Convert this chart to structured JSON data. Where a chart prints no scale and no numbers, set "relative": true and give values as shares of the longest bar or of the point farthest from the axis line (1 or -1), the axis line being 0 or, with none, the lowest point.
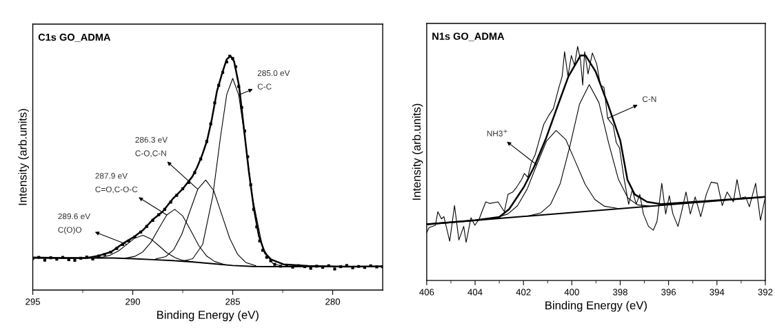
{
  "chart_data": [
    {
      "type": "line",
      "title": "C1s GO_ADMA",
      "xlabel": "Binding Energy (eV)",
      "ylabel": "Intensity (arb.units)",
      "relative": true,
      "tick_labels": "x",
      "xlim": [
        295,
        277.5
      ],
      "xticks": [
        295,
        {
          "value": 292.5,
          "label": null
        },
        290,
        {
          "value": 287.5,
          "label": null
        },
        285,
        {
          "value": 282.5,
          "label": null
        },
        280
      ],
      "series": [
        {
          "type": "scatter",
          "marker": "square",
          "color": "#000000",
          "x": [
            295.0,
            294.7,
            294.4,
            294.1,
            293.8,
            293.5,
            293.2,
            292.9,
            292.6,
            292.3,
            292.0,
            291.7,
            291.4,
            291.1,
            290.8,
            290.5,
            290.2,
            289.9,
            289.6,
            289.3,
            289.0,
            288.7,
            288.4,
            288.1,
            287.8,
            287.5,
            287.2,
            286.9,
            286.6,
            286.3,
            286.1,
            285.9,
            285.7,
            285.5,
            285.3,
            285.15,
            285.0,
            284.85,
            284.7,
            284.55,
            284.4,
            284.25,
            284.1,
            283.95,
            283.8,
            283.65,
            283.5,
            283.3,
            283.1,
            282.9,
            282.6,
            282.3,
            282.0,
            281.7,
            281.4,
            281.1,
            280.8,
            280.5,
            280.2,
            279.9,
            279.6,
            279.3,
            279.0,
            278.7,
            278.4,
            278.1,
            277.8,
            277.5
          ],
          "values": [
            0.135,
            0.14,
            0.128,
            0.138,
            0.132,
            0.14,
            0.13,
            0.127,
            0.136,
            0.141,
            0.133,
            0.146,
            0.152,
            0.162,
            0.178,
            0.195,
            0.21,
            0.227,
            0.248,
            0.272,
            0.298,
            0.322,
            0.345,
            0.376,
            0.405,
            0.433,
            0.46,
            0.502,
            0.56,
            0.635,
            0.71,
            0.8,
            0.875,
            0.93,
            0.975,
            1.0,
            0.99,
            0.955,
            0.87,
            0.78,
            0.68,
            0.57,
            0.45,
            0.345,
            0.27,
            0.21,
            0.17,
            0.14,
            0.125,
            0.11,
            0.102,
            0.106,
            0.098,
            0.104,
            0.1,
            0.093,
            0.102,
            0.097,
            0.104,
            0.09,
            0.1,
            0.105,
            0.095,
            0.101,
            0.097,
            0.104,
            0.099,
            0.1
          ]
        },
        {
          "type": "line",
          "color": "#000000",
          "x": [
            295.0,
            293.56,
            292.32,
            291.7,
            291.09,
            290.47,
            289.98,
            289.49,
            289.0,
            288.5,
            288.01,
            287.52,
            287.02,
            286.78,
            286.53,
            286.28,
            286.04,
            285.79,
            285.54,
            285.3,
            285.11,
            284.93,
            284.68,
            284.43,
            284.19,
            283.94,
            283.69,
            283.39,
            283.08,
            282.46,
            281.23,
            279.38,
            277.5
          ],
          "values": [
            0.139,
            0.137,
            0.137,
            0.147,
            0.163,
            0.2,
            0.225,
            0.256,
            0.301,
            0.336,
            0.389,
            0.431,
            0.485,
            0.525,
            0.577,
            0.64,
            0.733,
            0.85,
            0.924,
            0.987,
            1.0,
            0.977,
            0.871,
            0.683,
            0.504,
            0.347,
            0.231,
            0.158,
            0.131,
            0.11,
            0.103,
            0.1,
            0.102
          ]
        },
        {
          "type": "line",
          "color": "#000000",
          "x": [
            295.0,
            291.0,
            290.0,
            289.0,
            288.0,
            287.0,
            286.0,
            285.0,
            284.0,
            283.0,
            277.5
          ],
          "values": [
            0.137,
            0.137,
            0.134,
            0.13,
            0.126,
            0.12,
            0.113,
            0.105,
            0.101,
            0.1,
            0.1
          ]
        },
        {
          "type": "line",
          "color": "#000000",
          "x": [
            287.5,
            287.0,
            286.5,
            286.0,
            285.6,
            285.3,
            285.0,
            284.7,
            284.4,
            284.0,
            283.5,
            283.0,
            282.5
          ],
          "values": [
            0.124,
            0.134,
            0.196,
            0.401,
            0.662,
            0.836,
            0.905,
            0.834,
            0.656,
            0.389,
            0.18,
            0.114,
            0.101
          ]
        },
        {
          "type": "line",
          "color": "#000000",
          "x": [
            288.85,
            288.35,
            287.95,
            287.55,
            287.15,
            286.75,
            286.35,
            285.95,
            285.55,
            285.15,
            284.75,
            284.35,
            283.85
          ],
          "values": [
            0.133,
            0.143,
            0.173,
            0.238,
            0.335,
            0.431,
            0.47,
            0.425,
            0.323,
            0.221,
            0.152,
            0.118,
            0.104
          ]
        },
        {
          "type": "line",
          "color": "#000000",
          "x": [
            290.4,
            289.9,
            289.5,
            289.1,
            288.7,
            288.3,
            287.9,
            287.5,
            287.1,
            286.7,
            286.3,
            285.9,
            285.4
          ],
          "values": [
            0.136,
            0.144,
            0.163,
            0.203,
            0.263,
            0.321,
            0.345,
            0.317,
            0.255,
            0.19,
            0.145,
            0.122,
            0.109
          ]
        },
        {
          "type": "line",
          "color": "#000000",
          "x": [
            292.0,
            291.5,
            291.1,
            290.7,
            290.3,
            289.9,
            289.5,
            289.1,
            288.7,
            288.3,
            287.9,
            287.5,
            287.0
          ],
          "values": [
            0.138,
            0.141,
            0.15,
            0.168,
            0.195,
            0.222,
            0.234,
            0.219,
            0.19,
            0.16,
            0.139,
            0.127,
            0.121
          ]
        }
      ],
      "annotations": [
        {
          "text": "285.0 eV\nC-C",
          "x": 284.7,
          "y": 0.834
        },
        {
          "text": "286.3 eV\nC-O,C-N",
          "x": 286.75,
          "y": 0.431
        },
        {
          "text": "287.9 eV\nC=O,C-O-C",
          "x": 288.3,
          "y": 0.321
        },
        {
          "text": "289.6 eV\nC(O)O",
          "x": 290.3,
          "y": 0.195
        }
      ]
    },
    {
      "type": "line",
      "title": "N1s GO_ADMA",
      "xlabel": "Binding Energy (eV)",
      "ylabel": "Intensity (arb.units)",
      "relative": true,
      "tick_labels": "x",
      "xlim": [
        406,
        392
      ],
      "xticks": [
        406,
        {
          "value": 405,
          "label": null
        },
        404,
        {
          "value": 403,
          "label": null
        },
        402,
        {
          "value": 401,
          "label": null
        },
        400,
        {
          "value": 399,
          "label": null
        },
        398,
        {
          "value": 397,
          "label": null
        },
        396,
        {
          "value": 395,
          "label": null
        },
        394,
        {
          "value": 393,
          "label": null
        },
        392
      ],
      "series": [
        {
          "type": "line",
          "color": "#000000",
          "x": [
            406.0,
            405.9,
            405.64,
            405.54,
            405.39,
            405.29,
            405.05,
            404.85,
            404.67,
            404.47,
            404.37,
            404.17,
            404.01,
            403.83,
            403.56,
            403.4,
            403.05,
            402.79,
            402.64,
            402.44,
            402.28,
            402.08,
            401.96,
            401.82,
            401.67,
            401.52,
            401.32,
            401.16,
            400.96,
            400.76,
            400.55,
            400.4,
            400.3,
            400.16,
            400.02,
            399.89,
            399.76,
            399.64,
            399.55,
            399.47,
            399.33,
            399.15,
            398.97,
            398.82,
            398.67,
            398.52,
            398.29,
            398.16,
            398.03,
            397.85,
            397.65,
            397.5,
            397.34,
            397.19,
            397.04,
            396.83,
            396.63,
            396.48,
            396.28,
            396.12,
            395.97,
            395.82,
            395.61,
            395.46,
            395.28,
            395.1,
            394.9,
            394.67,
            394.44,
            394.24,
            393.98,
            393.78,
            393.58,
            393.32,
            393.17,
            393.02,
            392.81,
            392.66,
            392.4,
            392.2,
            392.0
          ],
          "values": [
            0.205,
            0.226,
            0.236,
            0.294,
            0.263,
            0.273,
            0.168,
            0.32,
            0.173,
            0.231,
            0.163,
            0.268,
            0.236,
            0.263,
            0.336,
            0.329,
            0.336,
            0.294,
            0.368,
            0.378,
            0.399,
            0.431,
            0.457,
            0.441,
            0.504,
            0.536,
            0.609,
            0.667,
            0.704,
            0.735,
            0.819,
            0.872,
            0.977,
            0.872,
            0.961,
            0.919,
            1.0,
            0.94,
            0.835,
            0.977,
            0.882,
            0.972,
            0.924,
            0.835,
            0.825,
            0.693,
            0.662,
            0.588,
            0.567,
            0.441,
            0.326,
            0.388,
            0.326,
            0.368,
            0.284,
            0.231,
            0.215,
            0.252,
            0.415,
            0.284,
            0.362,
            0.284,
            0.231,
            0.294,
            0.378,
            0.284,
            0.357,
            0.273,
            0.368,
            0.42,
            0.415,
            0.32,
            0.378,
            0.336,
            0.431,
            0.352,
            0.357,
            0.315,
            0.415,
            0.257,
            0.357
          ]
        },
        {
          "type": "line",
          "color": "#000000",
          "x": [
            406.0,
            404.0,
            403.0,
            402.59,
            401.98,
            401.57,
            401.06,
            400.55,
            400.14,
            399.64,
            399.43,
            399.02,
            398.52,
            398.0,
            397.7,
            397.4,
            396.89,
            396.28,
            392.0
          ],
          "values": [
            0.24,
            0.257,
            0.271,
            0.305,
            0.4,
            0.483,
            0.609,
            0.756,
            0.872,
            0.961,
            0.961,
            0.893,
            0.756,
            0.599,
            0.43,
            0.368,
            0.336,
            0.326,
            0.357
          ]
        },
        {
          "type": "line",
          "color": "#000000",
          "x": [
            406.0,
            392.0
          ],
          "values": [
            0.24,
            0.357
          ]
        },
        {
          "type": "line",
          "color": "#000000",
          "x": [
            403.15,
            402.65,
            402.25,
            401.85,
            401.45,
            401.05,
            400.65,
            400.25,
            399.85,
            399.45,
            399.05,
            398.65,
            398.15
          ],
          "values": [
            0.267,
            0.284,
            0.319,
            0.39,
            0.494,
            0.595,
            0.641,
            0.602,
            0.507,
            0.411,
            0.346,
            0.317,
            0.309
          ]
        },
        {
          "type": "line",
          "color": "#000000",
          "x": [
            401.78,
            401.28,
            400.88,
            400.48,
            400.08,
            399.68,
            399.28,
            398.88,
            398.48,
            398.08,
            397.68,
            397.28,
            396.78
          ],
          "values": [
            0.276,
            0.289,
            0.325,
            0.414,
            0.574,
            0.754,
            0.837,
            0.76,
            0.588,
            0.434,
            0.352,
            0.323,
            0.318
          ]
        }
      ],
      "annotations": [
        {
          "text": "C-N",
          "x": 398.52,
          "y": 0.693
        },
        {
          "text": "NH3$^{+}$",
          "x": 401.45,
          "y": 0.494
        }
      ]
    }
  ]
}
